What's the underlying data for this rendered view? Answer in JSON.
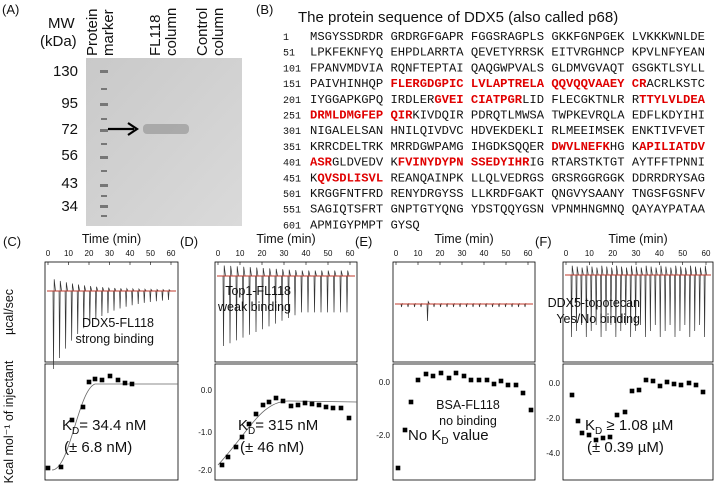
{
  "panel_a": {
    "label": "(A)",
    "mw_title": [
      "MW",
      "(kDa)"
    ],
    "lanes": [
      "Protein marker",
      "FL118 column",
      "Control column"
    ],
    "markers": [
      "130",
      "95",
      "72",
      "56",
      "43",
      "34"
    ]
  },
  "panel_b": {
    "label": "(B)",
    "title": "The protein sequence of DDX5 (also called p68)",
    "lines": [
      {
        "num": "1",
        "segments": [
          {
            "text": "MSGYSSDRDR GRDRGFGAPR FGGSRAGPLS GKKFGNPGEK LVKKKWNLDE",
            "highlight": false
          }
        ]
      },
      {
        "num": "51",
        "segments": [
          {
            "text": "LPKFEKNFYQ EHPDLARRTA QEVETYRRSK EITVRGHNCP KPVLNFYEAN",
            "highlight": false
          }
        ]
      },
      {
        "num": "101",
        "segments": [
          {
            "text": "FPANVMDVIA RQNFTEPTAI QAQGWPVALS GLDMVGVAQT GSGKTLSYLL",
            "highlight": false
          }
        ]
      },
      {
        "num": "151",
        "segments": [
          {
            "text": "PAIVHINHQP ",
            "highlight": false
          },
          {
            "text": "FLERGDGPIC LVLAPTRELA QQVQQVAAEY CR",
            "highlight": true
          },
          {
            "text": "ACRLKSTC",
            "highlight": false
          }
        ]
      },
      {
        "num": "201",
        "segments": [
          {
            "text": "IYGGAPKGPQ IRDLER",
            "highlight": false
          },
          {
            "text": "GVEI CIATPGR",
            "highlight": true
          },
          {
            "text": "LID FLECGKTNLR R",
            "highlight": false
          },
          {
            "text": "TTYLVLDEA",
            "highlight": true
          }
        ]
      },
      {
        "num": "251",
        "segments": [
          {
            "text": "DRMLDMGFEP QIR",
            "highlight": true
          },
          {
            "text": "KIVDQIR PDRQTLMWSA TWPKEVRQLA EDFLKDYIHI",
            "highlight": false
          }
        ]
      },
      {
        "num": "301",
        "segments": [
          {
            "text": "NIGALELSAN HNILQIVDVC HDVEKDEKLI RLMEEIMSEK ENKTIVFVET",
            "highlight": false
          }
        ]
      },
      {
        "num": "351",
        "segments": [
          {
            "text": "KRRCDELTRK MRRDGWPAMG IHGDKSQQER ",
            "highlight": false
          },
          {
            "text": "DWVLNEFK",
            "highlight": true
          },
          {
            "text": "HG K",
            "highlight": false
          },
          {
            "text": "APILIATDV",
            "highlight": true
          }
        ]
      },
      {
        "num": "401",
        "segments": [
          {
            "text": "ASR",
            "highlight": true
          },
          {
            "text": "GLDVEDV K",
            "highlight": false
          },
          {
            "text": "FVINYDYPN SSEDYIHR",
            "highlight": true
          },
          {
            "text": "IG RTARSTKTGT AYTFFTPNNI",
            "highlight": false
          }
        ]
      },
      {
        "num": "451",
        "segments": [
          {
            "text": "K",
            "highlight": false
          },
          {
            "text": "QVSDLISVL",
            "highlight": true
          },
          {
            "text": " REANQAINPK LLQLVEDRGS GRSRGGRGGK DDRRDRYSAG",
            "highlight": false
          }
        ]
      },
      {
        "num": "501",
        "segments": [
          {
            "text": "KRGGFNTFRD RENYDRGYSS LLKRDFGAKT QNGVYSAANY TNGSFGSNFV",
            "highlight": false
          }
        ]
      },
      {
        "num": "551",
        "segments": [
          {
            "text": "SAGIQTSFRT GNPTGTYQNG YDSTQQYGSN VPNMHNGMNQ QAYAYPATAA",
            "highlight": false
          }
        ]
      },
      {
        "num": "601",
        "segments": [
          {
            "text": "APMIGYPMPT GYSQ",
            "highlight": false
          }
        ]
      }
    ]
  },
  "itc": {
    "time_label": "Time (min)",
    "time_ticks": [
      "0",
      "10",
      "20",
      "30",
      "40",
      "50",
      "60"
    ],
    "top_ylabel": "µcal/sec",
    "bottom_ylabel": "Kcal mol⁻¹ of injectant",
    "panels": [
      {
        "label": "(C)",
        "annotation": [
          "DDX5-FL118",
          "strong binding"
        ],
        "kd": [
          "K",
          "D",
          "= 34.4 nM"
        ],
        "kd_error": "(± 6.8 nM)",
        "yticks": []
      },
      {
        "label": "(D)",
        "annotation": [
          "Top1-FL118",
          "weak binding"
        ],
        "kd": [
          "K",
          "D",
          "= 315 nM"
        ],
        "kd_error": "(± 46 nM)",
        "yticks": [
          "0.0",
          "-1.0",
          "-2.0"
        ]
      },
      {
        "label": "(E)",
        "annotation": [
          "BSA-FL118",
          "no binding"
        ],
        "kd": [
          "No K",
          "D",
          " value"
        ],
        "yticks": [
          "0.0",
          "-2.0"
        ]
      },
      {
        "label": "(F)",
        "annotation": [
          "DDX5-topotecan",
          "Yes/No binding"
        ],
        "kd": [
          "K",
          "D",
          " ≥ 1.08 µM"
        ],
        "kd_error": "(± 0.39 µM)",
        "yticks": [
          "0.0",
          "-2.0",
          "-4.0"
        ]
      }
    ]
  }
}
